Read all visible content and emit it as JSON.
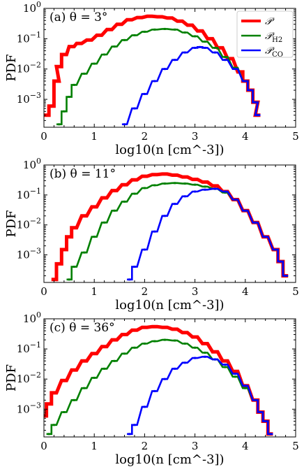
{
  "chart_data": [
    {
      "type": "line",
      "panel_label": "(a) θ = 3°",
      "xlabel": "log10(n [cm^-3])",
      "ylabel": "PDF",
      "xlim": [
        0,
        5
      ],
      "ylim": [
        0.00012,
        1.0
      ],
      "yscale": "log",
      "x_ticks": [
        "0",
        "1",
        "2",
        "3",
        "4",
        "5"
      ],
      "y_ticks": [
        {
          "base": "10",
          "exp": "0",
          "value": 1
        },
        {
          "base": "10",
          "exp": "−1",
          "value": 0.1
        },
        {
          "base": "10",
          "exp": "−2",
          "value": 0.01
        },
        {
          "base": "10",
          "exp": "−3",
          "value": 0.001
        }
      ],
      "legend": {
        "placement": "top-right",
        "entries": [
          {
            "text": "𝒫",
            "sub": "",
            "color": "#ff0000"
          },
          {
            "text": "𝒫",
            "sub": "H2",
            "color": "#008000"
          },
          {
            "text": "𝒫",
            "sub": "CO",
            "color": "#0000ff"
          }
        ]
      },
      "series": [
        {
          "color": "#ff0000",
          "points": [
            [
              0.05,
              0.0003
            ],
            [
              0.15,
              0.0006
            ],
            [
              0.25,
              0.004
            ],
            [
              0.3,
              0.012
            ],
            [
              0.4,
              0.03
            ],
            [
              0.55,
              0.055
            ],
            [
              0.7,
              0.07
            ],
            [
              0.9,
              0.09
            ],
            [
              1.1,
              0.13
            ],
            [
              1.3,
              0.2
            ],
            [
              1.5,
              0.3
            ],
            [
              1.7,
              0.42
            ],
            [
              1.9,
              0.5
            ],
            [
              2.1,
              0.55
            ],
            [
              2.3,
              0.53
            ],
            [
              2.5,
              0.48
            ],
            [
              2.7,
              0.38
            ],
            [
              2.9,
              0.28
            ],
            [
              3.1,
              0.18
            ],
            [
              3.3,
              0.1
            ],
            [
              3.5,
              0.05
            ],
            [
              3.7,
              0.022
            ],
            [
              3.9,
              0.008
            ],
            [
              4.0,
              0.004
            ],
            [
              4.1,
              0.002
            ],
            [
              4.2,
              0.0008
            ],
            [
              4.25,
              0.0003
            ]
          ]
        },
        {
          "color": "#008000",
          "points": [
            [
              0.3,
              0.00015
            ],
            [
              0.4,
              0.0004
            ],
            [
              0.5,
              0.0012
            ],
            [
              0.6,
              0.003
            ],
            [
              0.8,
              0.007
            ],
            [
              1.0,
              0.015
            ],
            [
              1.2,
              0.03
            ],
            [
              1.4,
              0.055
            ],
            [
              1.6,
              0.09
            ],
            [
              1.8,
              0.13
            ],
            [
              2.0,
              0.17
            ],
            [
              2.2,
              0.2
            ],
            [
              2.4,
              0.21
            ],
            [
              2.6,
              0.2
            ],
            [
              2.8,
              0.16
            ],
            [
              3.0,
              0.12
            ],
            [
              3.2,
              0.08
            ],
            [
              3.4,
              0.05
            ],
            [
              3.6,
              0.025
            ],
            [
              3.8,
              0.011
            ],
            [
              4.0,
              0.004
            ],
            [
              4.1,
              0.002
            ],
            [
              4.2,
              0.0008
            ],
            [
              4.25,
              0.0003
            ]
          ]
        },
        {
          "color": "#0000ff",
          "points": [
            [
              1.6,
              0.00015
            ],
            [
              1.8,
              0.0005
            ],
            [
              2.0,
              0.0015
            ],
            [
              2.2,
              0.004
            ],
            [
              2.4,
              0.01
            ],
            [
              2.6,
              0.02
            ],
            [
              2.8,
              0.035
            ],
            [
              3.0,
              0.05
            ],
            [
              3.1,
              0.053
            ],
            [
              3.2,
              0.05
            ],
            [
              3.4,
              0.035
            ],
            [
              3.6,
              0.02
            ],
            [
              3.8,
              0.01
            ],
            [
              4.0,
              0.004
            ],
            [
              4.1,
              0.002
            ],
            [
              4.2,
              0.0008
            ],
            [
              4.25,
              0.0003
            ]
          ]
        }
      ]
    },
    {
      "type": "line",
      "panel_label": "(b) θ = 11°",
      "xlabel": "log10(n [cm^-3])",
      "ylabel": "PDF",
      "xlim": [
        0,
        5
      ],
      "ylim": [
        0.00012,
        1.0
      ],
      "yscale": "log",
      "x_ticks": [
        "0",
        "1",
        "2",
        "3",
        "4",
        "5"
      ],
      "y_ticks": [
        {
          "base": "10",
          "exp": "0",
          "value": 1
        },
        {
          "base": "10",
          "exp": "−1",
          "value": 0.1
        },
        {
          "base": "10",
          "exp": "−2",
          "value": 0.01
        },
        {
          "base": "10",
          "exp": "−3",
          "value": 0.001
        }
      ],
      "series": [
        {
          "color": "#ff0000",
          "points": [
            [
              0.2,
              0.00015
            ],
            [
              0.3,
              0.0005
            ],
            [
              0.4,
              0.0015
            ],
            [
              0.5,
              0.004
            ],
            [
              0.6,
              0.008
            ],
            [
              0.8,
              0.02
            ],
            [
              1.0,
              0.04
            ],
            [
              1.2,
              0.08
            ],
            [
              1.4,
              0.14
            ],
            [
              1.6,
              0.22
            ],
            [
              1.8,
              0.32
            ],
            [
              2.0,
              0.42
            ],
            [
              2.2,
              0.48
            ],
            [
              2.4,
              0.5
            ],
            [
              2.6,
              0.46
            ],
            [
              2.8,
              0.4
            ],
            [
              3.0,
              0.33
            ],
            [
              3.2,
              0.27
            ],
            [
              3.4,
              0.2
            ],
            [
              3.6,
              0.13
            ],
            [
              3.8,
              0.07
            ],
            [
              4.0,
              0.03
            ],
            [
              4.2,
              0.012
            ],
            [
              4.4,
              0.004
            ],
            [
              4.6,
              0.0015
            ],
            [
              4.7,
              0.0006
            ],
            [
              4.8,
              0.0002
            ]
          ]
        },
        {
          "color": "#008000",
          "points": [
            [
              0.5,
              0.00015
            ],
            [
              0.6,
              0.0004
            ],
            [
              0.8,
              0.0012
            ],
            [
              1.0,
              0.004
            ],
            [
              1.2,
              0.012
            ],
            [
              1.4,
              0.03
            ],
            [
              1.6,
              0.06
            ],
            [
              1.8,
              0.11
            ],
            [
              2.0,
              0.17
            ],
            [
              2.2,
              0.21
            ],
            [
              2.4,
              0.24
            ],
            [
              2.6,
              0.25
            ],
            [
              2.8,
              0.24
            ],
            [
              3.0,
              0.22
            ],
            [
              3.2,
              0.19
            ],
            [
              3.4,
              0.16
            ],
            [
              3.6,
              0.12
            ],
            [
              3.8,
              0.07
            ],
            [
              4.0,
              0.03
            ],
            [
              4.2,
              0.012
            ],
            [
              4.4,
              0.004
            ],
            [
              4.6,
              0.0015
            ],
            [
              4.7,
              0.0006
            ],
            [
              4.8,
              0.0002
            ]
          ]
        },
        {
          "color": "#0000ff",
          "points": [
            [
              1.7,
              0.00015
            ],
            [
              1.8,
              0.0004
            ],
            [
              2.0,
              0.0015
            ],
            [
              2.2,
              0.006
            ],
            [
              2.4,
              0.02
            ],
            [
              2.6,
              0.05
            ],
            [
              2.8,
              0.09
            ],
            [
              3.0,
              0.13
            ],
            [
              3.2,
              0.15
            ],
            [
              3.4,
              0.16
            ],
            [
              3.6,
              0.13
            ],
            [
              3.8,
              0.07
            ],
            [
              4.0,
              0.03
            ],
            [
              4.2,
              0.012
            ],
            [
              4.4,
              0.004
            ],
            [
              4.6,
              0.0015
            ],
            [
              4.7,
              0.0006
            ],
            [
              4.8,
              0.0002
            ]
          ]
        }
      ]
    },
    {
      "type": "line",
      "panel_label": "(c) θ = 36°",
      "xlabel": "log10(n [cm^-3])",
      "ylabel": "PDF",
      "xlim": [
        0,
        5
      ],
      "ylim": [
        0.00012,
        1.0
      ],
      "yscale": "log",
      "x_ticks": [
        "0",
        "1",
        "2",
        "3",
        "4",
        "5"
      ],
      "y_ticks": [
        {
          "base": "10",
          "exp": "0",
          "value": 1
        },
        {
          "base": "10",
          "exp": "−1",
          "value": 0.1
        },
        {
          "base": "10",
          "exp": "−2",
          "value": 0.01
        },
        {
          "base": "10",
          "exp": "−3",
          "value": 0.001
        }
      ],
      "series": [
        {
          "color": "#ff0000",
          "points": [
            [
              0.0,
              0.0006
            ],
            [
              0.1,
              0.0015
            ],
            [
              0.2,
              0.0035
            ],
            [
              0.4,
              0.009
            ],
            [
              0.6,
              0.02
            ],
            [
              0.8,
              0.04
            ],
            [
              1.0,
              0.07
            ],
            [
              1.2,
              0.12
            ],
            [
              1.4,
              0.2
            ],
            [
              1.6,
              0.3
            ],
            [
              1.8,
              0.42
            ],
            [
              2.0,
              0.52
            ],
            [
              2.2,
              0.55
            ],
            [
              2.4,
              0.52
            ],
            [
              2.6,
              0.45
            ],
            [
              2.8,
              0.35
            ],
            [
              3.0,
              0.25
            ],
            [
              3.2,
              0.15
            ],
            [
              3.4,
              0.08
            ],
            [
              3.6,
              0.04
            ],
            [
              3.8,
              0.018
            ],
            [
              4.0,
              0.006
            ],
            [
              4.2,
              0.002
            ],
            [
              4.3,
              0.0008
            ],
            [
              4.4,
              0.0004
            ],
            [
              4.5,
              0.00015
            ]
          ]
        },
        {
          "color": "#008000",
          "points": [
            [
              0.1,
              0.00015
            ],
            [
              0.2,
              0.0003
            ],
            [
              0.4,
              0.0008
            ],
            [
              0.6,
              0.002
            ],
            [
              0.8,
              0.005
            ],
            [
              1.0,
              0.011
            ],
            [
              1.2,
              0.022
            ],
            [
              1.4,
              0.04
            ],
            [
              1.6,
              0.07
            ],
            [
              1.8,
              0.11
            ],
            [
              2.0,
              0.15
            ],
            [
              2.2,
              0.18
            ],
            [
              2.4,
              0.2
            ],
            [
              2.6,
              0.19
            ],
            [
              2.8,
              0.15
            ],
            [
              3.0,
              0.11
            ],
            [
              3.2,
              0.075
            ],
            [
              3.4,
              0.045
            ],
            [
              3.6,
              0.025
            ],
            [
              3.8,
              0.012
            ],
            [
              4.0,
              0.005
            ],
            [
              4.2,
              0.002
            ],
            [
              4.3,
              0.0008
            ],
            [
              4.4,
              0.0004
            ],
            [
              4.5,
              0.00015
            ]
          ]
        },
        {
          "color": "#0000ff",
          "points": [
            [
              1.7,
              0.00015
            ],
            [
              1.8,
              0.0003
            ],
            [
              2.0,
              0.0012
            ],
            [
              2.2,
              0.004
            ],
            [
              2.4,
              0.01
            ],
            [
              2.6,
              0.022
            ],
            [
              2.8,
              0.035
            ],
            [
              3.0,
              0.05
            ],
            [
              3.2,
              0.055
            ],
            [
              3.4,
              0.045
            ],
            [
              3.6,
              0.03
            ],
            [
              3.8,
              0.015
            ],
            [
              4.0,
              0.006
            ],
            [
              4.2,
              0.002
            ],
            [
              4.3,
              0.0008
            ],
            [
              4.4,
              0.0004
            ],
            [
              4.5,
              0.00015
            ]
          ]
        }
      ]
    }
  ]
}
